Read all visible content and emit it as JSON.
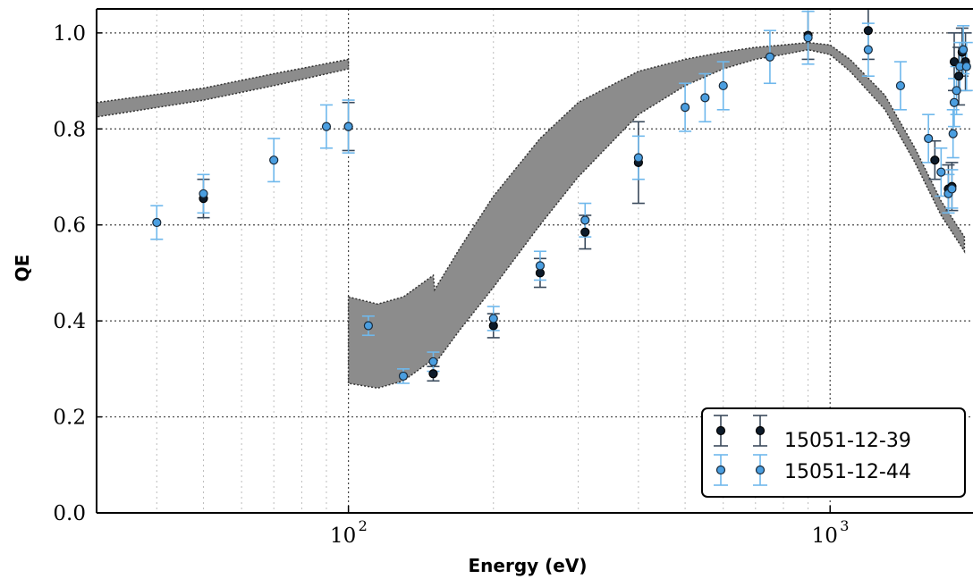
{
  "chart_data": {
    "type": "scatter",
    "title": "",
    "xlabel": "Energy (eV)",
    "ylabel": "QE",
    "x_scale": "log",
    "xlim": [
      30,
      1980
    ],
    "ylim": [
      0.0,
      1.05
    ],
    "x_tick_labels": [
      {
        "value": 100,
        "base": "10",
        "exp": "2"
      },
      {
        "value": 1000,
        "base": "10",
        "exp": "3"
      }
    ],
    "y_tick_labels": [
      "0.0",
      "0.2",
      "0.4",
      "0.6",
      "0.8",
      "1.0"
    ],
    "y_tick_values": [
      0.0,
      0.2,
      0.4,
      0.6,
      0.8,
      1.0
    ],
    "grid": true,
    "legend_position": "lower-right",
    "model_band": {
      "color": "#8c8c8c",
      "segments": [
        {
          "x": [
            30,
            50,
            70,
            100
          ],
          "lower": [
            0.825,
            0.86,
            0.89,
            0.925
          ],
          "upper": [
            0.855,
            0.885,
            0.915,
            0.945
          ]
        },
        {
          "x": [
            100,
            115,
            130,
            150,
            151,
            170,
            200,
            250,
            300,
            400,
            500,
            600,
            700,
            800,
            900,
            1000,
            1100,
            1300,
            1500,
            1700,
            1900
          ],
          "lower": [
            0.27,
            0.26,
            0.275,
            0.32,
            0.31,
            0.38,
            0.47,
            0.6,
            0.7,
            0.83,
            0.89,
            0.925,
            0.945,
            0.955,
            0.965,
            0.955,
            0.92,
            0.84,
            0.73,
            0.62,
            0.545
          ],
          "upper": [
            0.45,
            0.435,
            0.45,
            0.495,
            0.465,
            0.55,
            0.66,
            0.78,
            0.855,
            0.92,
            0.945,
            0.96,
            0.97,
            0.975,
            0.98,
            0.975,
            0.945,
            0.87,
            0.76,
            0.65,
            0.575
          ]
        }
      ]
    },
    "series": [
      {
        "name": "15051-12-39",
        "color": "#0d1b2a",
        "edge_color": "#000000",
        "errorbar_color": "#3a4a5c",
        "x": [
          50,
          100,
          150,
          200,
          250,
          310,
          400,
          900,
          1200,
          1650,
          1760,
          1790,
          1810,
          1850,
          1880,
          1910
        ],
        "y": [
          0.655,
          0.805,
          0.29,
          0.39,
          0.5,
          0.585,
          0.73,
          0.995,
          1.005,
          0.735,
          0.675,
          0.68,
          0.94,
          0.91,
          0.96,
          0.94
        ],
        "err": [
          0.04,
          0.05,
          0.015,
          0.025,
          0.03,
          0.035,
          0.085,
          0.05,
          0.06,
          0.04,
          0.05,
          0.05,
          0.06,
          0.06,
          0.05,
          0.06
        ]
      },
      {
        "name": "15051-12-44",
        "color": "#4a9ee0",
        "edge_color": "#1a2a3a",
        "errorbar_color": "#6fb8ec",
        "x": [
          40,
          50,
          70,
          90,
          100,
          110,
          130,
          150,
          200,
          250,
          310,
          400,
          500,
          550,
          600,
          750,
          900,
          1200,
          1400,
          1600,
          1700,
          1760,
          1790,
          1800,
          1810,
          1830,
          1860,
          1890,
          1920
        ],
        "y": [
          0.605,
          0.665,
          0.735,
          0.805,
          0.805,
          0.39,
          0.285,
          0.315,
          0.405,
          0.515,
          0.61,
          0.74,
          0.845,
          0.865,
          0.89,
          0.95,
          0.99,
          0.965,
          0.89,
          0.78,
          0.71,
          0.665,
          0.675,
          0.79,
          0.855,
          0.88,
          0.93,
          0.965,
          0.93
        ],
        "err": [
          0.035,
          0.04,
          0.045,
          0.045,
          0.055,
          0.02,
          0.015,
          0.02,
          0.025,
          0.03,
          0.035,
          0.045,
          0.05,
          0.05,
          0.05,
          0.055,
          0.055,
          0.055,
          0.05,
          0.05,
          0.05,
          0.04,
          0.04,
          0.05,
          0.05,
          0.05,
          0.05,
          0.05,
          0.05
        ]
      }
    ],
    "legend": [
      {
        "label": "15051-12-39"
      },
      {
        "label": "15051-12-44"
      }
    ]
  }
}
